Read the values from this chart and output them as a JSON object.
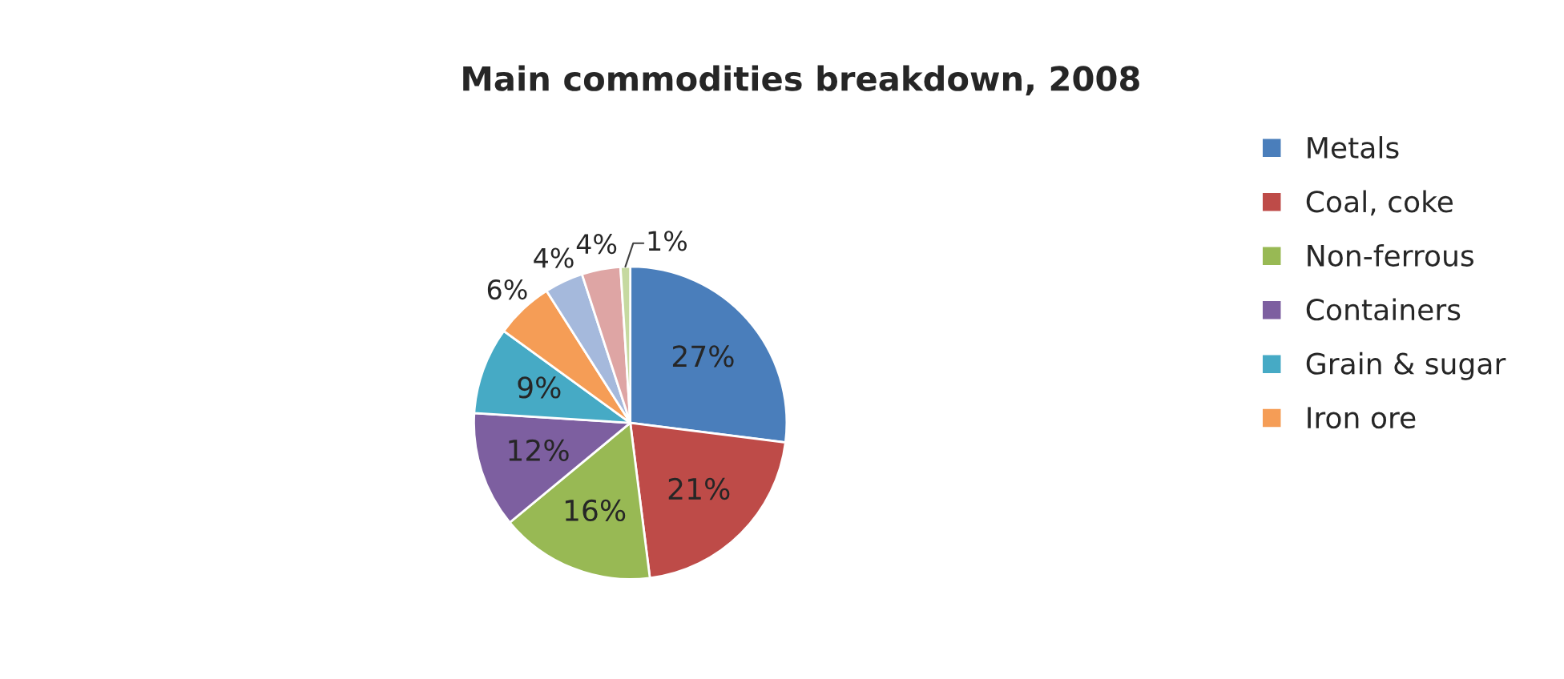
{
  "chart_data": {
    "type": "pie",
    "title": "Main commodities breakdown, 2008",
    "categories": [
      "Metals",
      "Coal, coke",
      "Non-ferrous",
      "Containers",
      "Grain & sugar",
      "Iron ore",
      null,
      null,
      null
    ],
    "values": [
      27,
      21,
      16,
      12,
      9,
      6,
      4,
      4,
      1
    ],
    "value_labels": [
      "27%",
      "21%",
      "16%",
      "12%",
      "9%",
      "6%",
      "4%",
      "4%",
      "1%"
    ],
    "colors": [
      "#4a7ebb",
      "#be4b48",
      "#98b954",
      "#7d5fa0",
      "#46aac5",
      "#f59d56",
      "#a5b9dc",
      "#dea5a4",
      "#c6d9a0"
    ],
    "legend": "right"
  }
}
